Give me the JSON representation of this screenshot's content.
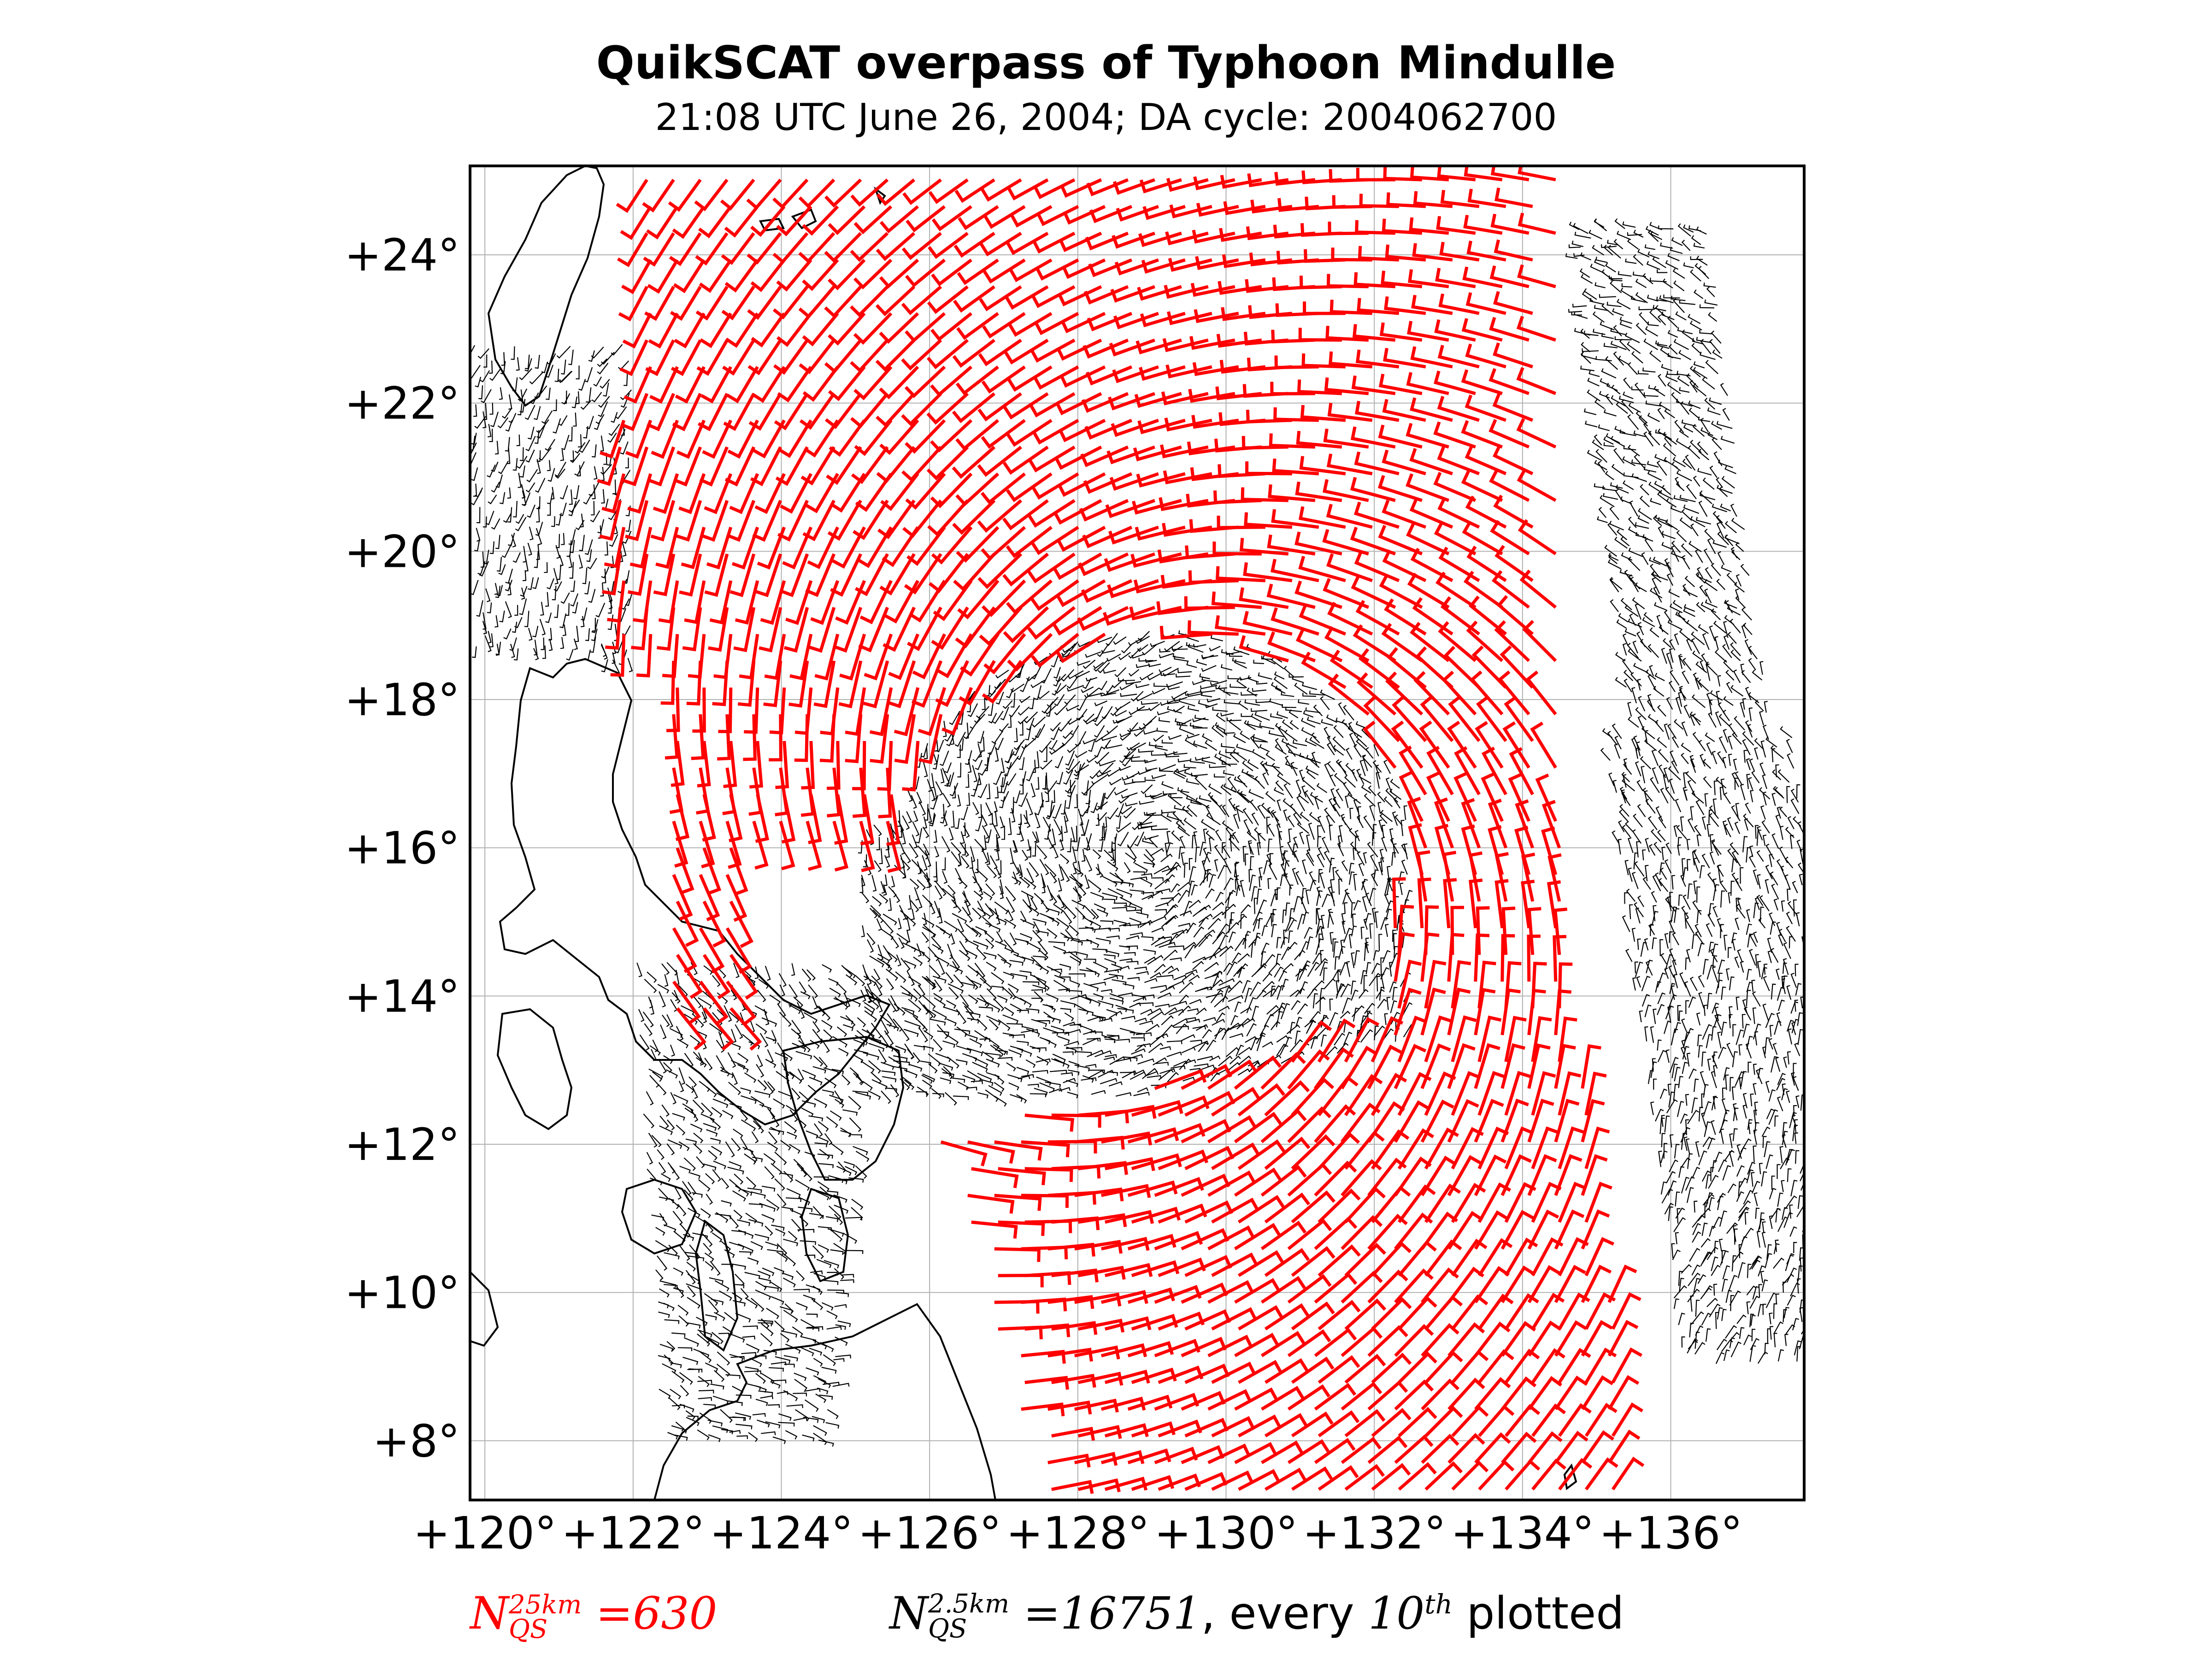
{
  "title": "QuikSCAT overpass of Typhoon Mindulle",
  "subtitle": "21:08 UTC June 26, 2004; DA cycle: 2004062700",
  "map": {
    "lon_range": [
      119.8,
      137.8
    ],
    "lat_range": [
      7.2,
      25.2
    ],
    "lon_ticks": [
      "+120°",
      "+122°",
      "+124°",
      "+126°",
      "+128°",
      "+130°",
      "+132°",
      "+134°",
      "+136°"
    ],
    "lat_ticks": [
      "+8°",
      "+10°",
      "+12°",
      "+14°",
      "+16°",
      "+18°",
      "+20°",
      "+22°",
      "+24°"
    ],
    "storm_center": {
      "lon": 129.0,
      "lat": 16.0
    },
    "colors": {
      "qs25": "#ff0000",
      "qs2p5": "#000000",
      "coast": "#000000",
      "grid": "#b0b0b0"
    }
  },
  "legend": {
    "qs25": {
      "symbol": "N",
      "sup": "25km",
      "sub": "QS",
      "value": "=630"
    },
    "qs2p5": {
      "symbol": "N",
      "sup": "2.5km",
      "sub": "QS",
      "value": "=16751",
      "suffix": ", every ",
      "every": "10",
      "every_sup": "th",
      "tail": " plotted"
    }
  }
}
